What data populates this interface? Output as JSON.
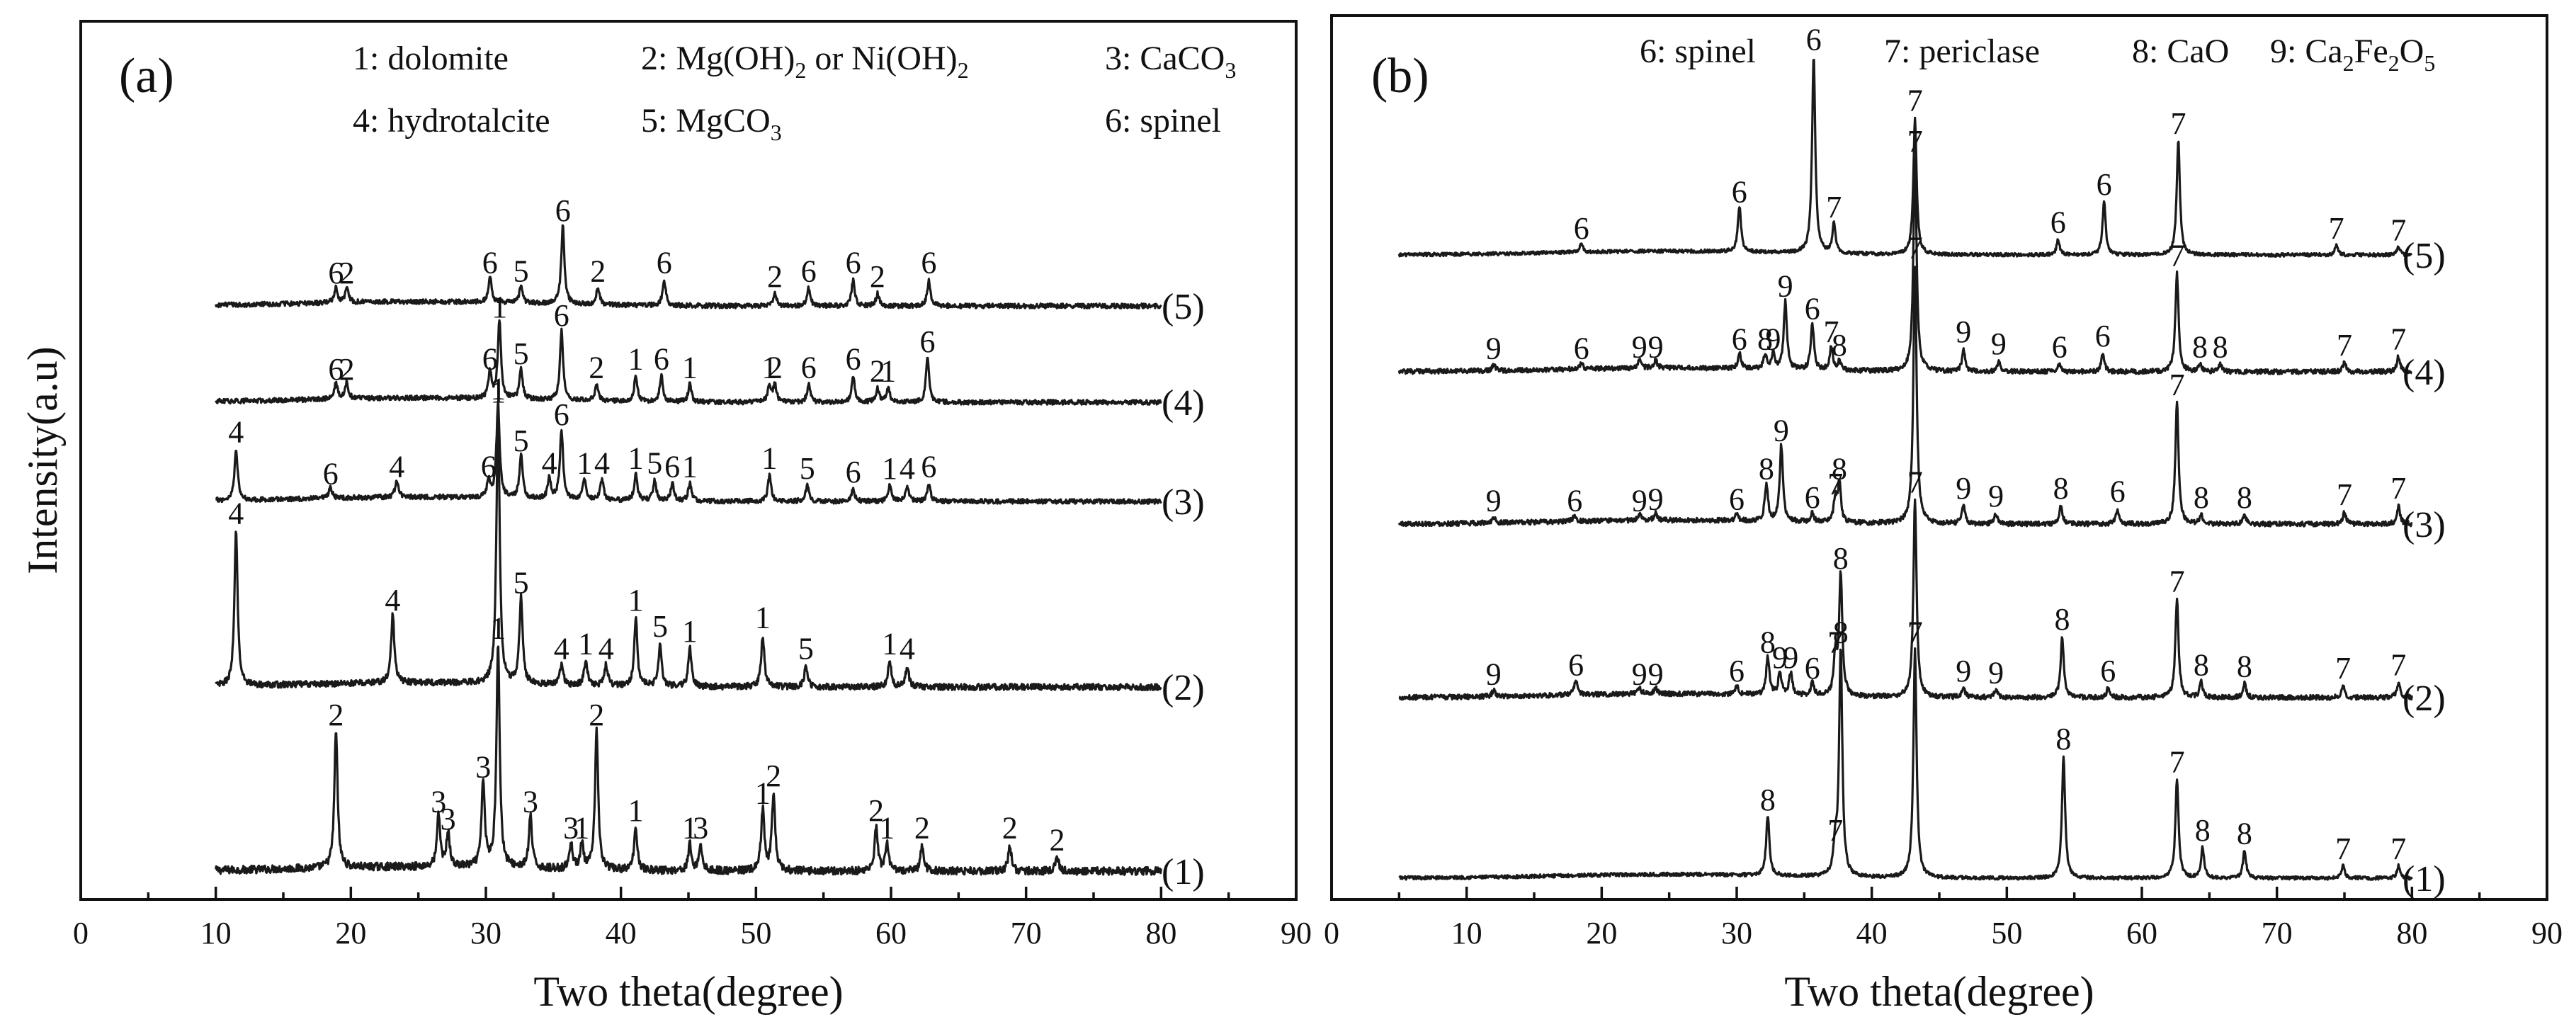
{
  "figure": {
    "ylabel": "Intensity(a.u)"
  },
  "chart_data": [
    {
      "type": "line",
      "panel_label": "(a)",
      "xlabel": "Two theta(degree)",
      "ylabel": "Intensity(a.u)",
      "xlim": [
        0,
        90
      ],
      "xticks": [
        0,
        10,
        20,
        30,
        40,
        50,
        60,
        70,
        80,
        90
      ],
      "x_range_measured": [
        10,
        80
      ],
      "legend": [
        {
          "text": "1: dolomite"
        },
        {
          "text": "2: Mg(OH)2 or Ni(OH)2"
        },
        {
          "text": "3: CaCO3"
        },
        {
          "text": "4: hydrotalcite"
        },
        {
          "text": "5: MgCO3"
        },
        {
          "text": "6: spinel"
        }
      ],
      "series": [
        {
          "name": "(1)",
          "noise": 0.5,
          "peaks": [
            {
              "x": 18.9,
              "h": 8,
              "label": "2"
            },
            {
              "x": 26.5,
              "h": 3,
              "label": "3"
            },
            {
              "x": 27.2,
              "h": 2,
              "label": "3"
            },
            {
              "x": 29.8,
              "h": 5,
              "label": "3"
            },
            {
              "x": 30.9,
              "h": 13,
              "label": "1"
            },
            {
              "x": 33.3,
              "h": 3,
              "label": "3"
            },
            {
              "x": 36.3,
              "h": 1.5,
              "label": "3"
            },
            {
              "x": 37.1,
              "h": 1.5,
              "label": "1"
            },
            {
              "x": 38.2,
              "h": 8,
              "label": "2"
            },
            {
              "x": 41.1,
              "h": 2.5,
              "label": "1"
            },
            {
              "x": 45.1,
              "h": 1.5,
              "label": "1"
            },
            {
              "x": 45.9,
              "h": 1.5,
              "label": "3"
            },
            {
              "x": 50.5,
              "h": 3.5,
              "label": "1"
            },
            {
              "x": 51.3,
              "h": 4.5,
              "label": "2"
            },
            {
              "x": 58.9,
              "h": 2.5,
              "label": "2"
            },
            {
              "x": 59.7,
              "h": 1.5,
              "label": "1"
            },
            {
              "x": 62.3,
              "h": 1.5,
              "label": "2"
            },
            {
              "x": 68.8,
              "h": 1.5,
              "label": "2"
            },
            {
              "x": 72.3,
              "h": 0.8,
              "label": "2"
            }
          ]
        },
        {
          "name": "(2)",
          "noise": 0.4,
          "peaks": [
            {
              "x": 11.5,
              "h": 9,
              "label": "4"
            },
            {
              "x": 23.1,
              "h": 4,
              "label": "4"
            },
            {
              "x": 30.9,
              "h": 16,
              "label": "1"
            },
            {
              "x": 32.6,
              "h": 5,
              "label": "5"
            },
            {
              "x": 35.6,
              "h": 1.2,
              "label": "4"
            },
            {
              "x": 37.4,
              "h": 1.5,
              "label": "1"
            },
            {
              "x": 38.9,
              "h": 1.2,
              "label": "4"
            },
            {
              "x": 41.1,
              "h": 4,
              "label": "1"
            },
            {
              "x": 42.9,
              "h": 2.5,
              "label": "5"
            },
            {
              "x": 45.1,
              "h": 2.2,
              "label": "1"
            },
            {
              "x": 50.5,
              "h": 3,
              "label": "1"
            },
            {
              "x": 53.7,
              "h": 1.2,
              "label": "5"
            },
            {
              "x": 59.9,
              "h": 1.5,
              "label": "1"
            },
            {
              "x": 61.2,
              "h": 1.2,
              "label": "4"
            }
          ]
        },
        {
          "name": "(3)",
          "noise": 0.3,
          "peaks": [
            {
              "x": 11.5,
              "h": 3,
              "label": "4"
            },
            {
              "x": 18.5,
              "h": 0.6,
              "label": "6"
            },
            {
              "x": 23.4,
              "h": 1,
              "label": "4"
            },
            {
              "x": 30.2,
              "h": 1,
              "label": "6"
            },
            {
              "x": 30.9,
              "h": 5.5,
              "label": "1"
            },
            {
              "x": 32.6,
              "h": 2.5,
              "label": "5"
            },
            {
              "x": 34.7,
              "h": 1.2,
              "label": "4"
            },
            {
              "x": 35.6,
              "h": 4,
              "label": "6"
            },
            {
              "x": 37.3,
              "h": 1.2,
              "label": "1"
            },
            {
              "x": 38.6,
              "h": 1.2,
              "label": "4"
            },
            {
              "x": 41.1,
              "h": 1.5,
              "label": "1"
            },
            {
              "x": 42.5,
              "h": 1.2,
              "label": "5"
            },
            {
              "x": 43.8,
              "h": 1,
              "label": "6"
            },
            {
              "x": 45.1,
              "h": 1,
              "label": "1"
            },
            {
              "x": 51.0,
              "h": 1.5,
              "label": "1"
            },
            {
              "x": 53.8,
              "h": 0.9,
              "label": "5"
            },
            {
              "x": 57.2,
              "h": 0.7,
              "label": "6"
            },
            {
              "x": 59.9,
              "h": 0.9,
              "label": "1"
            },
            {
              "x": 61.2,
              "h": 0.9,
              "label": "4"
            },
            {
              "x": 62.8,
              "h": 1,
              "label": "6"
            }
          ]
        },
        {
          "name": "(4)",
          "noise": 0.3,
          "peaks": [
            {
              "x": 18.9,
              "h": 0.9,
              "label": "6"
            },
            {
              "x": 19.7,
              "h": 0.9,
              "label": "2"
            },
            {
              "x": 30.3,
              "h": 1.5,
              "label": "6"
            },
            {
              "x": 31.0,
              "h": 4.5,
              "label": "1"
            },
            {
              "x": 32.6,
              "h": 1.8,
              "label": "5"
            },
            {
              "x": 35.6,
              "h": 4,
              "label": "6"
            },
            {
              "x": 38.2,
              "h": 1,
              "label": "2"
            },
            {
              "x": 41.1,
              "h": 1.5,
              "label": "1"
            },
            {
              "x": 43.0,
              "h": 1.5,
              "label": "6"
            },
            {
              "x": 45.1,
              "h": 1,
              "label": "1"
            },
            {
              "x": 51.0,
              "h": 1,
              "label": "1"
            },
            {
              "x": 51.4,
              "h": 1,
              "label": "2"
            },
            {
              "x": 53.9,
              "h": 1,
              "label": "6"
            },
            {
              "x": 57.2,
              "h": 1.5,
              "label": "6"
            },
            {
              "x": 59.0,
              "h": 0.8,
              "label": "2"
            },
            {
              "x": 59.8,
              "h": 0.8,
              "label": "1"
            },
            {
              "x": 62.7,
              "h": 2.5,
              "label": "6"
            }
          ]
        },
        {
          "name": "(5)",
          "noise": 0.3,
          "peaks": [
            {
              "x": 18.9,
              "h": 0.9,
              "label": "6"
            },
            {
              "x": 19.7,
              "h": 0.9,
              "label": "2"
            },
            {
              "x": 30.3,
              "h": 1.5,
              "label": "6"
            },
            {
              "x": 32.6,
              "h": 1,
              "label": "5"
            },
            {
              "x": 35.7,
              "h": 4.5,
              "label": "6"
            },
            {
              "x": 38.3,
              "h": 1,
              "label": "2"
            },
            {
              "x": 43.2,
              "h": 1.5,
              "label": "6"
            },
            {
              "x": 51.4,
              "h": 0.7,
              "label": "2"
            },
            {
              "x": 53.9,
              "h": 1,
              "label": "6"
            },
            {
              "x": 57.2,
              "h": 1.5,
              "label": "6"
            },
            {
              "x": 59.0,
              "h": 0.7,
              "label": "2"
            },
            {
              "x": 62.8,
              "h": 1.5,
              "label": "6"
            }
          ]
        }
      ]
    },
    {
      "type": "line",
      "panel_label": "(b)",
      "xlabel": "Two theta(degree)",
      "xlim": [
        0,
        90
      ],
      "xticks": [
        0,
        10,
        20,
        30,
        40,
        50,
        60,
        70,
        80,
        90
      ],
      "x_range_measured": [
        5,
        80
      ],
      "legend": [
        {
          "text": "6: spinel"
        },
        {
          "text": "7: periclase"
        },
        {
          "text": "8: CaO"
        },
        {
          "text": "9: Ca2Fe2O5"
        }
      ],
      "series": [
        {
          "name": "(1)",
          "noise": 0.25,
          "peaks": [
            {
              "x": 32.3,
              "h": 4,
              "label": "8"
            },
            {
              "x": 37.3,
              "h": 2,
              "label": "7"
            },
            {
              "x": 37.7,
              "h": 15,
              "label": "8"
            },
            {
              "x": 43.2,
              "h": 15,
              "label": "7"
            },
            {
              "x": 54.2,
              "h": 8,
              "label": "8"
            },
            {
              "x": 62.6,
              "h": 6.5,
              "label": "7"
            },
            {
              "x": 64.5,
              "h": 2,
              "label": "8"
            },
            {
              "x": 67.6,
              "h": 1.8,
              "label": "8"
            },
            {
              "x": 74.9,
              "h": 0.8,
              "label": "7"
            },
            {
              "x": 79.0,
              "h": 0.8,
              "label": "7"
            }
          ]
        },
        {
          "name": "(2)",
          "noise": 0.35,
          "peaks": [
            {
              "x": 12.0,
              "h": 0.4,
              "label": "9"
            },
            {
              "x": 18.1,
              "h": 1,
              "label": "6"
            },
            {
              "x": 22.8,
              "h": 0.4,
              "label": "9"
            },
            {
              "x": 24.0,
              "h": 0.4,
              "label": "9"
            },
            {
              "x": 30.0,
              "h": 0.6,
              "label": "6"
            },
            {
              "x": 32.3,
              "h": 2.5,
              "label": "8"
            },
            {
              "x": 33.2,
              "h": 1.5,
              "label": "9"
            },
            {
              "x": 34.0,
              "h": 1.5,
              "label": "9"
            },
            {
              "x": 35.6,
              "h": 0.8,
              "label": "6"
            },
            {
              "x": 37.3,
              "h": 2.5,
              "label": "7"
            },
            {
              "x": 37.7,
              "h": 8,
              "label": "8"
            },
            {
              "x": 43.2,
              "h": 13,
              "label": "7"
            },
            {
              "x": 46.8,
              "h": 0.6,
              "label": "9"
            },
            {
              "x": 49.2,
              "h": 0.5,
              "label": "9"
            },
            {
              "x": 54.1,
              "h": 4,
              "label": "8"
            },
            {
              "x": 57.5,
              "h": 0.6,
              "label": "6"
            },
            {
              "x": 62.6,
              "h": 6.5,
              "label": "7"
            },
            {
              "x": 64.4,
              "h": 1,
              "label": "8"
            },
            {
              "x": 67.6,
              "h": 0.9,
              "label": "8"
            },
            {
              "x": 74.9,
              "h": 0.8,
              "label": "7"
            },
            {
              "x": 79.0,
              "h": 1,
              "label": "7"
            }
          ]
        },
        {
          "name": "(3)",
          "noise": 0.35,
          "peaks": [
            {
              "x": 12.0,
              "h": 0.4,
              "label": "9"
            },
            {
              "x": 18.0,
              "h": 0.4,
              "label": "6"
            },
            {
              "x": 22.8,
              "h": 0.4,
              "label": "9"
            },
            {
              "x": 24.0,
              "h": 0.5,
              "label": "9"
            },
            {
              "x": 30.0,
              "h": 0.5,
              "label": "6"
            },
            {
              "x": 32.2,
              "h": 2.5,
              "label": "8"
            },
            {
              "x": 33.3,
              "h": 5,
              "label": "9"
            },
            {
              "x": 35.6,
              "h": 0.6,
              "label": "6"
            },
            {
              "x": 37.3,
              "h": 1.5,
              "label": "7"
            },
            {
              "x": 37.6,
              "h": 2.5,
              "label": "8"
            },
            {
              "x": 43.2,
              "h": 17,
              "label": "7"
            },
            {
              "x": 46.8,
              "h": 1.2,
              "label": "9"
            },
            {
              "x": 49.2,
              "h": 0.7,
              "label": "9"
            },
            {
              "x": 54.0,
              "h": 1.2,
              "label": "8"
            },
            {
              "x": 58.2,
              "h": 1,
              "label": "6"
            },
            {
              "x": 62.6,
              "h": 8,
              "label": "7"
            },
            {
              "x": 64.4,
              "h": 0.6,
              "label": "8"
            },
            {
              "x": 67.6,
              "h": 0.6,
              "label": "8"
            },
            {
              "x": 75.0,
              "h": 0.8,
              "label": "7"
            },
            {
              "x": 79.0,
              "h": 1.2,
              "label": "7"
            }
          ]
        },
        {
          "name": "(4)",
          "noise": 0.35,
          "peaks": [
            {
              "x": 12.0,
              "h": 0.4,
              "label": "9"
            },
            {
              "x": 18.5,
              "h": 0.4,
              "label": "6"
            },
            {
              "x": 22.8,
              "h": 0.5,
              "label": "9"
            },
            {
              "x": 24.0,
              "h": 0.5,
              "label": "9"
            },
            {
              "x": 30.2,
              "h": 1,
              "label": "6"
            },
            {
              "x": 32.1,
              "h": 1,
              "label": "8"
            },
            {
              "x": 32.7,
              "h": 1,
              "label": "9"
            },
            {
              "x": 33.6,
              "h": 4.5,
              "label": "9"
            },
            {
              "x": 35.6,
              "h": 3,
              "label": "6"
            },
            {
              "x": 37.0,
              "h": 1.5,
              "label": "7"
            },
            {
              "x": 37.6,
              "h": 0.6,
              "label": "8"
            },
            {
              "x": 43.2,
              "h": 14,
              "label": "7"
            },
            {
              "x": 46.8,
              "h": 1.5,
              "label": "9"
            },
            {
              "x": 49.4,
              "h": 0.7,
              "label": "9"
            },
            {
              "x": 53.9,
              "h": 0.5,
              "label": "6"
            },
            {
              "x": 57.1,
              "h": 1.2,
              "label": "6"
            },
            {
              "x": 62.6,
              "h": 6.5,
              "label": "7"
            },
            {
              "x": 64.3,
              "h": 0.5,
              "label": "8"
            },
            {
              "x": 65.8,
              "h": 0.5,
              "label": "8"
            },
            {
              "x": 75.0,
              "h": 0.6,
              "label": "7"
            },
            {
              "x": 79.0,
              "h": 1,
              "label": "7"
            }
          ]
        },
        {
          "name": "(5)",
          "noise": 0.25,
          "peaks": [
            {
              "x": 18.5,
              "h": 0.6,
              "label": "6"
            },
            {
              "x": 30.2,
              "h": 3,
              "label": "6"
            },
            {
              "x": 35.7,
              "h": 13,
              "label": "6"
            },
            {
              "x": 37.2,
              "h": 2,
              "label": "7"
            },
            {
              "x": 43.2,
              "h": 9,
              "label": "7"
            },
            {
              "x": 53.8,
              "h": 1,
              "label": "6"
            },
            {
              "x": 57.2,
              "h": 3.5,
              "label": "6"
            },
            {
              "x": 62.7,
              "h": 7.5,
              "label": "7"
            },
            {
              "x": 74.4,
              "h": 0.6,
              "label": "7"
            },
            {
              "x": 79.0,
              "h": 0.5,
              "label": "7"
            }
          ]
        }
      ]
    }
  ]
}
